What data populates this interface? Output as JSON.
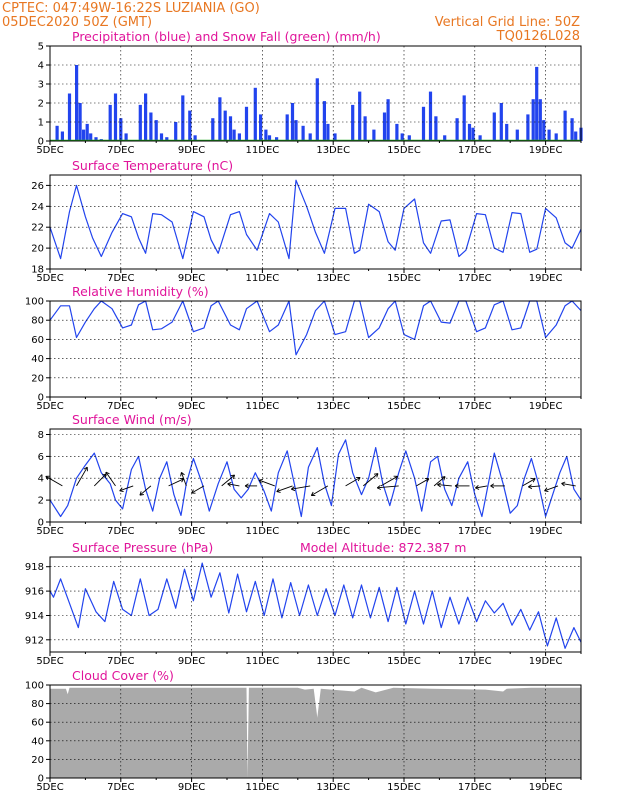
{
  "header": {
    "line1": "CPTEC:   047:49W-16:22S   LUZIANIA (GO)",
    "line2": "05DEC2020  50Z  (GMT)",
    "grid_note": "Vertical Grid Line: 50Z",
    "run_code": "TQ0126L028"
  },
  "colors": {
    "header": "#e87722",
    "title": "#e0149a",
    "series": "#2244ee",
    "snow": "#22aa22",
    "cloud": "#aaaaaa",
    "wind_arrow": "#000000"
  },
  "x_axis": {
    "ticks": [
      "5DEC",
      "7DEC",
      "9DEC",
      "11DEC",
      "13DEC",
      "15DEC",
      "17DEC",
      "19DEC"
    ],
    "range_days": [
      0,
      15
    ]
  },
  "chart_data": [
    {
      "id": "precip",
      "type": "bar",
      "title": "Precipitation (blue) and Snow Fall (green) (mm/h)",
      "ylim": [
        0,
        5
      ],
      "yticks": [
        0,
        1,
        2,
        3,
        4,
        5
      ],
      "series": [
        {
          "name": "Precipitation",
          "x": [
            0.2,
            0.35,
            0.55,
            0.75,
            0.85,
            0.95,
            1.05,
            1.15,
            1.3,
            1.45,
            1.7,
            1.85,
            2.0,
            2.15,
            2.55,
            2.7,
            2.85,
            3.0,
            3.15,
            3.3,
            3.55,
            3.75,
            3.95,
            4.1,
            4.6,
            4.8,
            4.95,
            5.1,
            5.2,
            5.35,
            5.55,
            5.8,
            5.95,
            6.1,
            6.2,
            6.4,
            6.7,
            6.85,
            6.95,
            7.15,
            7.35,
            7.55,
            7.75,
            7.85,
            8.05,
            8.55,
            8.75,
            8.9,
            9.15,
            9.45,
            9.55,
            9.8,
            9.95,
            10.15,
            10.55,
            10.75,
            10.9,
            11.15,
            11.5,
            11.7,
            11.85,
            11.95,
            12.15,
            12.55,
            12.75,
            12.9,
            13.2,
            13.5,
            13.65,
            13.75,
            13.85,
            13.95,
            14.1,
            14.3,
            14.55,
            14.75,
            14.85,
            15.0
          ],
          "values": [
            0.8,
            0.5,
            2.5,
            4.0,
            2.0,
            0.6,
            0.9,
            0.4,
            0.2,
            0.1,
            1.9,
            2.5,
            1.2,
            0.4,
            1.9,
            2.5,
            1.5,
            1.1,
            0.4,
            0.2,
            1.0,
            2.4,
            1.6,
            0.3,
            1.2,
            2.3,
            1.6,
            1.3,
            0.6,
            0.4,
            1.8,
            2.8,
            1.4,
            0.6,
            0.3,
            0.2,
            1.4,
            2.0,
            1.1,
            0.8,
            0.4,
            3.3,
            2.1,
            0.9,
            0.4,
            1.9,
            2.6,
            1.3,
            0.6,
            1.5,
            2.2,
            0.9,
            0.4,
            0.3,
            1.8,
            2.6,
            1.3,
            0.3,
            1.2,
            2.4,
            0.9,
            0.7,
            0.3,
            1.5,
            2.0,
            0.9,
            0.6,
            1.4,
            2.2,
            3.9,
            2.2,
            1.1,
            0.6,
            0.4,
            1.6,
            1.2,
            0.5,
            0.7
          ]
        },
        {
          "name": "Snow Fall",
          "x": [
            0,
            15
          ],
          "values": [
            0,
            0
          ]
        }
      ]
    },
    {
      "id": "temp",
      "type": "line",
      "title": "Surface Temperature (nC)",
      "ylim": [
        18,
        27
      ],
      "yticks": [
        18,
        20,
        22,
        24,
        26
      ],
      "series": [
        {
          "name": "Surface Temperature",
          "x": [
            0.0,
            0.3,
            0.55,
            0.75,
            1.0,
            1.2,
            1.45,
            1.75,
            2.05,
            2.3,
            2.5,
            2.7,
            2.9,
            3.15,
            3.45,
            3.75,
            4.05,
            4.35,
            4.55,
            4.75,
            5.1,
            5.35,
            5.55,
            5.85,
            6.2,
            6.45,
            6.75,
            6.95,
            7.25,
            7.5,
            7.75,
            8.05,
            8.35,
            8.6,
            8.75,
            9.0,
            9.3,
            9.55,
            9.75,
            10.0,
            10.3,
            10.55,
            10.75,
            11.05,
            11.3,
            11.55,
            11.75,
            12.05,
            12.3,
            12.55,
            12.8,
            13.05,
            13.3,
            13.55,
            13.75,
            14.0,
            14.3,
            14.55,
            14.75,
            15.0
          ],
          "values": [
            22.0,
            19.0,
            23.5,
            26.0,
            23.0,
            21.0,
            19.2,
            21.5,
            23.3,
            23.0,
            21.0,
            19.5,
            23.3,
            23.2,
            22.5,
            19.0,
            23.5,
            23.0,
            20.8,
            19.5,
            23.2,
            23.5,
            21.3,
            19.8,
            23.3,
            22.5,
            19.0,
            26.5,
            24.0,
            21.5,
            19.5,
            23.8,
            23.8,
            19.5,
            19.8,
            24.2,
            23.5,
            20.6,
            19.8,
            23.8,
            24.7,
            20.5,
            19.5,
            22.6,
            22.7,
            19.2,
            19.8,
            23.3,
            23.2,
            20.0,
            19.6,
            23.4,
            23.3,
            19.6,
            19.9,
            23.8,
            22.9,
            20.5,
            20.0,
            21.8
          ]
        }
      ]
    },
    {
      "id": "rh",
      "type": "line",
      "title": "Relative Humidity (%)",
      "ylim": [
        0,
        100
      ],
      "yticks": [
        0,
        20,
        40,
        60,
        80,
        100
      ],
      "series": [
        {
          "name": "Relative Humidity",
          "x": [
            0.0,
            0.3,
            0.55,
            0.75,
            1.0,
            1.25,
            1.45,
            1.75,
            2.05,
            2.3,
            2.5,
            2.7,
            2.9,
            3.15,
            3.45,
            3.75,
            4.05,
            4.35,
            4.55,
            4.75,
            5.1,
            5.35,
            5.55,
            5.85,
            6.2,
            6.45,
            6.75,
            6.95,
            7.25,
            7.5,
            7.75,
            8.05,
            8.35,
            8.6,
            8.75,
            9.0,
            9.3,
            9.55,
            9.75,
            10.0,
            10.3,
            10.55,
            10.75,
            11.05,
            11.3,
            11.55,
            11.75,
            12.05,
            12.3,
            12.55,
            12.8,
            13.05,
            13.3,
            13.55,
            13.75,
            14.0,
            14.3,
            14.55,
            14.75,
            15.0
          ],
          "values": [
            80,
            95,
            95,
            62,
            78,
            92,
            100,
            92,
            72,
            75,
            96,
            100,
            70,
            71,
            78,
            100,
            68,
            72,
            95,
            100,
            75,
            70,
            92,
            100,
            68,
            75,
            100,
            44,
            65,
            90,
            100,
            65,
            68,
            100,
            100,
            62,
            72,
            92,
            100,
            65,
            60,
            95,
            100,
            78,
            77,
            100,
            100,
            68,
            72,
            96,
            100,
            70,
            72,
            100,
            100,
            62,
            75,
            95,
            100,
            90
          ]
        }
      ]
    },
    {
      "id": "wind",
      "type": "line",
      "title": "Surface Wind (m/s)",
      "ylim": [
        0,
        8.5
      ],
      "yticks": [
        0,
        2,
        4,
        6,
        8
      ],
      "series": [
        {
          "name": "Surface Wind",
          "x": [
            0.0,
            0.3,
            0.5,
            0.75,
            1.0,
            1.25,
            1.45,
            1.7,
            1.85,
            2.05,
            2.3,
            2.5,
            2.7,
            2.9,
            3.1,
            3.3,
            3.5,
            3.7,
            3.85,
            4.05,
            4.3,
            4.5,
            4.75,
            5.0,
            5.2,
            5.4,
            5.6,
            5.8,
            6.05,
            6.25,
            6.45,
            6.7,
            6.9,
            7.1,
            7.3,
            7.55,
            7.75,
            7.95,
            8.15,
            8.35,
            8.55,
            8.8,
            9.0,
            9.2,
            9.4,
            9.6,
            9.85,
            10.05,
            10.3,
            10.5,
            10.75,
            10.95,
            11.15,
            11.35,
            11.55,
            11.8,
            12.0,
            12.2,
            12.4,
            12.55,
            12.8,
            13.0,
            13.2,
            13.4,
            13.6,
            13.8,
            14.0,
            14.2,
            14.4,
            14.6,
            14.8,
            15.0
          ],
          "values": [
            2.0,
            0.5,
            1.5,
            4.0,
            5.2,
            6.3,
            4.5,
            3.5,
            2.0,
            1.2,
            4.8,
            6.0,
            3.0,
            1.0,
            4.0,
            5.5,
            2.5,
            0.6,
            3.5,
            5.8,
            3.5,
            1.0,
            3.5,
            5.5,
            3.0,
            2.2,
            3.0,
            4.5,
            2.8,
            1.0,
            4.5,
            6.5,
            3.5,
            0.5,
            5.0,
            6.8,
            3.5,
            1.5,
            6.2,
            7.5,
            4.5,
            2.5,
            4.0,
            6.8,
            3.5,
            1.5,
            4.5,
            6.5,
            4.0,
            1.0,
            5.5,
            6.0,
            3.0,
            1.5,
            4.0,
            5.5,
            2.5,
            0.5,
            3.8,
            6.3,
            3.5,
            0.8,
            1.5,
            4.0,
            5.8,
            3.5,
            0.5,
            2.5,
            4.5,
            6.0,
            3.0,
            2.0
          ]
        },
        {
          "name": "Wind direction",
          "x": [
            0.35,
            0.75,
            1.25,
            1.85,
            2.35,
            2.85,
            3.35,
            3.85,
            4.35,
            4.85,
            5.35,
            5.85,
            6.35,
            6.85,
            7.35,
            7.85,
            8.35,
            8.85,
            9.35,
            9.85,
            10.35,
            10.85,
            11.35,
            11.85,
            12.35,
            12.85,
            13.35,
            13.85,
            14.35,
            14.85
          ],
          "angles": [
            150,
            60,
            45,
            125,
            200,
            220,
            25,
            110,
            210,
            40,
            170,
            180,
            160,
            200,
            190,
            210,
            30,
            40,
            30,
            185,
            30,
            40,
            175,
            180,
            190,
            180,
            30,
            185,
            200,
            170
          ],
          "lengths": [
            0.8,
            0.9,
            0.7,
            0.7,
            0.6,
            0.6,
            0.7,
            0.6,
            0.6,
            0.7,
            0.5,
            0.5,
            0.7,
            0.7,
            0.8,
            0.8,
            0.7,
            0.8,
            0.8,
            0.9,
            0.6,
            0.6,
            0.6,
            0.6,
            0.5,
            0.6,
            0.6,
            0.5,
            0.6,
            0.6
          ]
        }
      ]
    },
    {
      "id": "press",
      "type": "line",
      "title": "Surface Pressure (hPa)",
      "subtitle": "Model Altitude: 872.387 m",
      "ylim": [
        911,
        918.8
      ],
      "yticks": [
        912,
        914,
        916,
        918
      ],
      "series": [
        {
          "name": "Surface Pressure",
          "x": [
            0.0,
            0.1,
            0.3,
            0.55,
            0.8,
            1.0,
            1.3,
            1.55,
            1.8,
            2.05,
            2.3,
            2.55,
            2.8,
            3.05,
            3.3,
            3.55,
            3.8,
            4.05,
            4.3,
            4.55,
            4.8,
            5.05,
            5.3,
            5.55,
            5.8,
            6.05,
            6.3,
            6.55,
            6.8,
            7.05,
            7.3,
            7.55,
            7.8,
            8.05,
            8.3,
            8.55,
            8.8,
            9.05,
            9.3,
            9.55,
            9.8,
            10.05,
            10.3,
            10.55,
            10.8,
            11.05,
            11.3,
            11.55,
            11.8,
            12.05,
            12.3,
            12.55,
            12.8,
            13.05,
            13.3,
            13.55,
            13.8,
            14.05,
            14.3,
            14.55,
            14.8,
            15.0
          ],
          "values": [
            916.0,
            915.5,
            917.0,
            915.0,
            913.0,
            916.2,
            914.3,
            913.5,
            916.8,
            914.5,
            914.0,
            917.0,
            914.0,
            914.5,
            917.0,
            914.6,
            917.8,
            915.2,
            918.3,
            915.5,
            917.5,
            914.2,
            917.4,
            914.3,
            916.8,
            914.0,
            917.0,
            913.8,
            916.7,
            914.0,
            916.5,
            914.0,
            916.2,
            914.0,
            916.5,
            913.8,
            916.5,
            913.8,
            916.3,
            913.5,
            916.3,
            913.3,
            916.0,
            913.3,
            916.0,
            913.0,
            915.5,
            913.3,
            915.5,
            913.5,
            915.2,
            914.2,
            915.0,
            913.2,
            914.5,
            912.8,
            914.3,
            911.5,
            913.8,
            911.3,
            913.0,
            911.8
          ]
        }
      ]
    },
    {
      "id": "cloud",
      "type": "area",
      "title": "Cloud Cover (%)",
      "ylim": [
        0,
        100
      ],
      "yticks": [
        0,
        20,
        40,
        60,
        80,
        100
      ],
      "series": [
        {
          "name": "Cloud Cover",
          "x": [
            0.0,
            0.45,
            0.5,
            0.55,
            2.5,
            5.0,
            5.55,
            5.58,
            5.62,
            7.0,
            7.2,
            7.45,
            7.55,
            7.65,
            8.6,
            8.8,
            9.2,
            9.7,
            10.8,
            12.3,
            12.8,
            12.9,
            13.6,
            15.0
          ],
          "values": [
            96,
            96,
            90,
            97,
            97,
            97,
            97,
            0,
            97,
            97,
            95,
            96,
            65,
            96,
            93,
            97,
            92,
            97,
            96,
            95,
            93,
            96,
            97,
            97
          ]
        }
      ]
    }
  ]
}
